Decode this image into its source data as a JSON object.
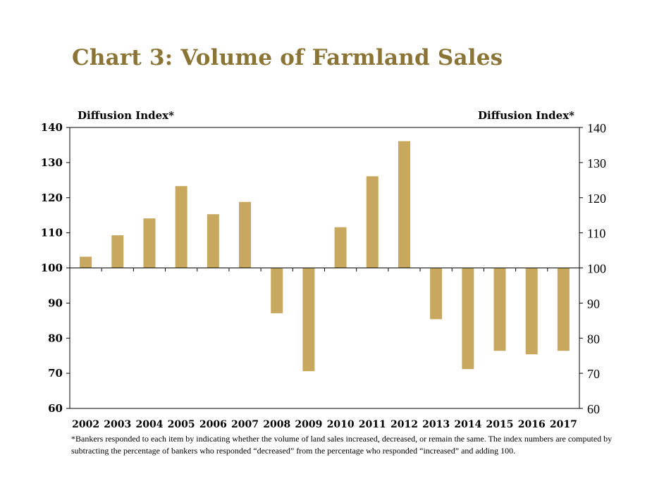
{
  "chart_data": {
    "type": "bar",
    "title": "Chart 3: Volume of Farmland Sales",
    "ylabel_left": "Diffusion Index*",
    "ylabel_right": "Diffusion Index*",
    "baseline": 100,
    "ylim": [
      60,
      140
    ],
    "yticks": [
      60,
      70,
      80,
      90,
      100,
      110,
      120,
      130,
      140
    ],
    "categories": [
      "2002",
      "2003",
      "2004",
      "2005",
      "2006",
      "2007",
      "2008",
      "2009",
      "2010",
      "2011",
      "2012",
      "2013",
      "2014",
      "2015",
      "2016",
      "2017"
    ],
    "values": [
      103.2,
      109.3,
      114.1,
      123.3,
      115.3,
      118.8,
      87.1,
      70.6,
      111.6,
      126.1,
      136.1,
      85.4,
      71.2,
      76.4,
      75.4,
      76.4
    ],
    "bar_color": "#C8A85E",
    "grid": false,
    "legend": "none"
  },
  "footnote": "*Bankers responded to each item by indicating whether the volume of land sales increased, decreased, or remain the same. The index numbers are computed by subtracting the percentage of bankers who responded “decreased” from the percentage who responded “increased” and adding 100."
}
